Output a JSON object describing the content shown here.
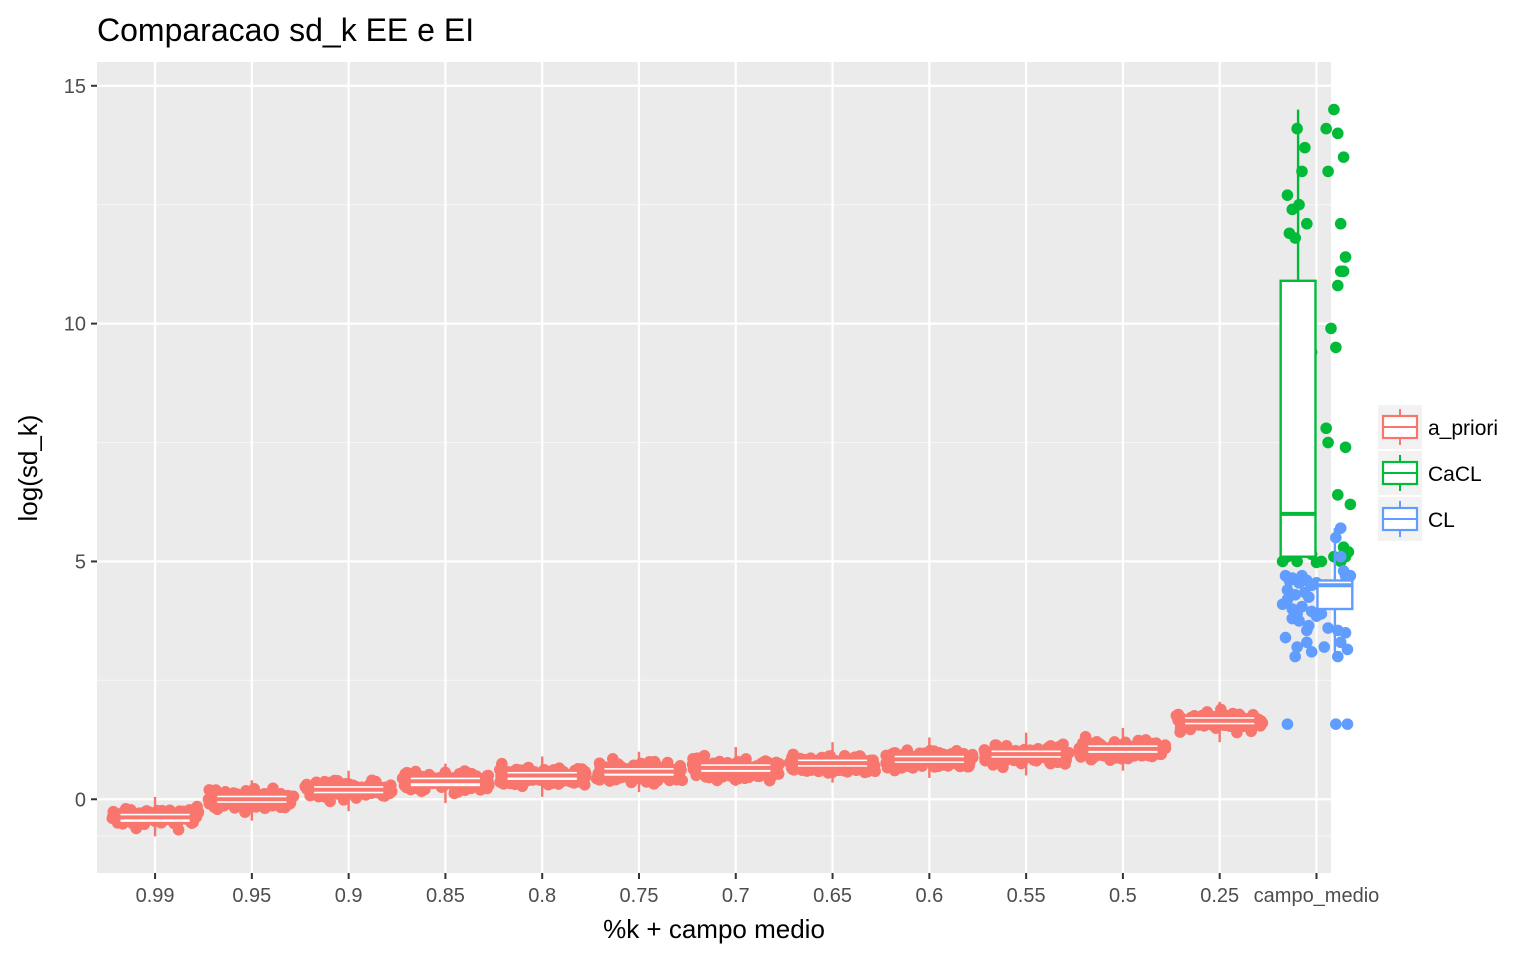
{
  "chart_data": {
    "type": "boxplot+jitter",
    "title": "Comparacao sd_k EE e EI",
    "xlabel": "%k + campo medio",
    "ylabel": "log(sd_k)",
    "categories": [
      "0.99",
      "0.95",
      "0.9",
      "0.85",
      "0.8",
      "0.75",
      "0.7",
      "0.65",
      "0.6",
      "0.55",
      "0.5",
      "0.25",
      "campo_medio"
    ],
    "yticks": [
      0,
      5,
      10,
      15
    ],
    "ylim": [
      -1.55,
      15.5
    ],
    "grid": true,
    "legend_position": "right",
    "series": [
      {
        "name": "a_priori",
        "color": "#F8766D",
        "boxes": [
          {
            "category": "0.99",
            "median": -0.38,
            "q1": -0.5,
            "q3": -0.28,
            "whisker_low": -0.78,
            "whisker_high": 0.05,
            "jitter_center": -0.38,
            "jitter_spread": 0.18
          },
          {
            "category": "0.95",
            "median": 0.0,
            "q1": -0.1,
            "q3": 0.1,
            "whisker_low": -0.45,
            "whisker_high": 0.4,
            "jitter_center": 0.0,
            "jitter_spread": 0.17
          },
          {
            "category": "0.9",
            "median": 0.2,
            "q1": 0.1,
            "q3": 0.3,
            "whisker_low": -0.25,
            "whisker_high": 0.6,
            "jitter_center": 0.2,
            "jitter_spread": 0.17
          },
          {
            "category": "0.85",
            "median": 0.38,
            "q1": 0.25,
            "q3": 0.48,
            "whisker_low": -0.08,
            "whisker_high": 0.75,
            "jitter_center": 0.35,
            "jitter_spread": 0.18
          },
          {
            "category": "0.8",
            "median": 0.5,
            "q1": 0.38,
            "q3": 0.6,
            "whisker_low": 0.05,
            "whisker_high": 0.9,
            "jitter_center": 0.48,
            "jitter_spread": 0.18
          },
          {
            "category": "0.75",
            "median": 0.58,
            "q1": 0.47,
            "q3": 0.68,
            "whisker_low": 0.15,
            "whisker_high": 1.0,
            "jitter_center": 0.56,
            "jitter_spread": 0.18
          },
          {
            "category": "0.7",
            "median": 0.66,
            "q1": 0.55,
            "q3": 0.76,
            "whisker_low": 0.28,
            "whisker_high": 1.1,
            "jitter_center": 0.64,
            "jitter_spread": 0.18
          },
          {
            "category": "0.65",
            "median": 0.76,
            "q1": 0.66,
            "q3": 0.86,
            "whisker_low": 0.35,
            "whisker_high": 1.2,
            "jitter_center": 0.74,
            "jitter_spread": 0.17
          },
          {
            "category": "0.6",
            "median": 0.84,
            "q1": 0.74,
            "q3": 0.94,
            "whisker_low": 0.45,
            "whisker_high": 1.3,
            "jitter_center": 0.83,
            "jitter_spread": 0.17
          },
          {
            "category": "0.55",
            "median": 0.95,
            "q1": 0.85,
            "q3": 1.05,
            "whisker_low": 0.5,
            "whisker_high": 1.4,
            "jitter_center": 0.93,
            "jitter_spread": 0.17
          },
          {
            "category": "0.5",
            "median": 1.06,
            "q1": 0.95,
            "q3": 1.16,
            "whisker_low": 0.6,
            "whisker_high": 1.5,
            "jitter_center": 1.04,
            "jitter_spread": 0.17
          },
          {
            "category": "0.25",
            "median": 1.65,
            "q1": 1.55,
            "q3": 1.75,
            "whisker_low": 1.2,
            "whisker_high": 2.05,
            "jitter_center": 1.62,
            "jitter_spread": 0.16
          }
        ]
      },
      {
        "name": "CaCL",
        "color": "#00BA38",
        "boxes": [
          {
            "category": "campo_medio",
            "median": 6.0,
            "q1": 5.1,
            "q3": 10.9,
            "whisker_low": 4.95,
            "whisker_high": 14.5
          }
        ],
        "points": [
          [
            -0.2,
            14.1
          ],
          [
            -0.12,
            13.7
          ],
          [
            0.18,
            14.5
          ],
          [
            0.22,
            14.0
          ],
          [
            0.28,
            13.5
          ],
          [
            0.1,
            14.1
          ],
          [
            -0.15,
            13.2
          ],
          [
            0.25,
            12.1
          ],
          [
            -0.3,
            12.7
          ],
          [
            -0.25,
            12.4
          ],
          [
            -0.18,
            12.5
          ],
          [
            -0.28,
            11.9
          ],
          [
            -0.22,
            11.8
          ],
          [
            -0.1,
            12.1
          ],
          [
            0.12,
            13.2
          ],
          [
            0.3,
            11.4
          ],
          [
            0.28,
            11.1
          ],
          [
            0.22,
            10.8
          ],
          [
            0.25,
            11.1
          ],
          [
            -0.15,
            9.4
          ],
          [
            0.15,
            9.9
          ],
          [
            0.2,
            9.5
          ],
          [
            -0.05,
            9.4
          ],
          [
            0.1,
            7.8
          ],
          [
            0.12,
            7.5
          ],
          [
            0.3,
            7.4
          ],
          [
            0.22,
            6.4
          ],
          [
            0.35,
            6.2
          ],
          [
            -0.3,
            6.6
          ],
          [
            -0.32,
            5.8
          ],
          [
            -0.25,
            5.9
          ],
          [
            -0.28,
            5.6
          ],
          [
            -0.32,
            5.4
          ],
          [
            -0.22,
            5.3
          ],
          [
            -0.3,
            5.1
          ],
          [
            -0.12,
            5.2
          ],
          [
            0.28,
            5.3
          ],
          [
            0.33,
            5.2
          ],
          [
            0.05,
            5.0
          ],
          [
            0.18,
            5.1
          ],
          [
            0.25,
            5.0
          ],
          [
            -0.05,
            5.15
          ],
          [
            -0.35,
            5.0
          ],
          [
            0.3,
            5.1
          ],
          [
            -0.2,
            5.0
          ],
          [
            0.0,
            4.98
          ]
        ]
      },
      {
        "name": "CL",
        "color": "#619CFF",
        "boxes": [
          {
            "category": "campo_medio",
            "median": 4.5,
            "q1": 4.0,
            "q3": 4.6,
            "whisker_low": 3.0,
            "whisker_high": 5.7
          }
        ],
        "points": [
          [
            0.25,
            5.7
          ],
          [
            0.2,
            5.5
          ],
          [
            0.25,
            5.1
          ],
          [
            0.28,
            4.8
          ],
          [
            0.3,
            4.7
          ],
          [
            0.35,
            4.7
          ],
          [
            -0.32,
            4.7
          ],
          [
            -0.28,
            4.6
          ],
          [
            -0.25,
            4.65
          ],
          [
            -0.2,
            4.6
          ],
          [
            -0.18,
            4.55
          ],
          [
            -0.15,
            4.7
          ],
          [
            -0.1,
            4.6
          ],
          [
            -0.05,
            4.5
          ],
          [
            0.0,
            4.55
          ],
          [
            0.05,
            4.45
          ],
          [
            0.1,
            4.5
          ],
          [
            -0.3,
            4.4
          ],
          [
            -0.22,
            4.3
          ],
          [
            -0.12,
            4.35
          ],
          [
            -0.08,
            4.25
          ],
          [
            0.15,
            4.3
          ],
          [
            0.2,
            4.2
          ],
          [
            -0.35,
            4.1
          ],
          [
            -0.3,
            4.2
          ],
          [
            -0.25,
            4.0
          ],
          [
            -0.2,
            3.9
          ],
          [
            -0.15,
            4.05
          ],
          [
            -0.05,
            3.95
          ],
          [
            0.0,
            3.85
          ],
          [
            0.05,
            3.9
          ],
          [
            -0.25,
            3.8
          ],
          [
            -0.18,
            3.75
          ],
          [
            -0.08,
            3.65
          ],
          [
            0.12,
            3.6
          ],
          [
            0.22,
            3.55
          ],
          [
            -0.1,
            3.55
          ],
          [
            0.3,
            3.5
          ],
          [
            0.25,
            3.3
          ],
          [
            -0.32,
            3.4
          ],
          [
            -0.2,
            3.2
          ],
          [
            -0.1,
            3.3
          ],
          [
            -0.22,
            3.0
          ],
          [
            0.08,
            3.2
          ],
          [
            -0.05,
            3.1
          ],
          [
            0.22,
            3.0
          ],
          [
            0.32,
            3.15
          ],
          [
            -0.3,
            1.58
          ],
          [
            0.2,
            1.58
          ],
          [
            0.32,
            1.58
          ]
        ]
      }
    ]
  }
}
